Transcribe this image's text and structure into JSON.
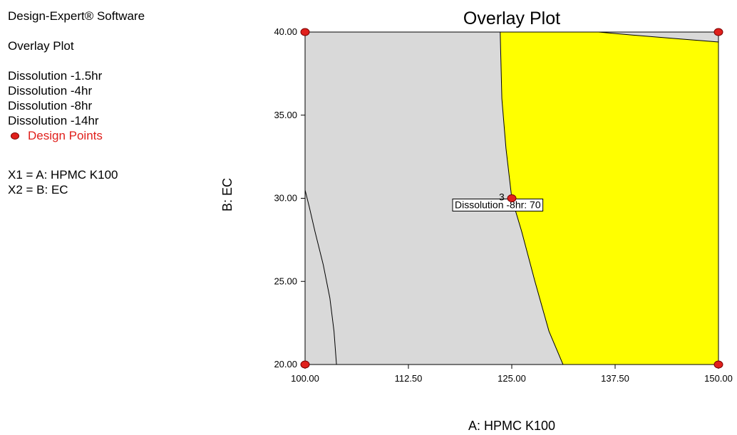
{
  "header": {
    "software": "Design-Expert® Software",
    "plot_name": "Overlay Plot",
    "responses": [
      "Dissolution -1.5hr",
      "Dissolution -4hr",
      "Dissolution -8hr",
      "Dissolution -14hr"
    ],
    "design_points_label": "Design Points",
    "factor_x1": "X1 = A: HPMC K100",
    "factor_x2": "X2 = B: EC"
  },
  "colors": {
    "feasible_region": "#ffff00",
    "infeasible_region": "#d9d9d9",
    "design_point": "#e0201c"
  },
  "chart_data": {
    "type": "overlay_contour",
    "title": "Overlay Plot",
    "xlabel": "A: HPMC K100",
    "ylabel": "B: EC",
    "xlim": [
      100,
      150
    ],
    "ylim": [
      20,
      40
    ],
    "x_ticks": [
      "100.00",
      "112.50",
      "125.00",
      "137.50",
      "150.00"
    ],
    "y_ticks": [
      "20.00",
      "25.00",
      "30.00",
      "35.00",
      "40.00"
    ],
    "design_points": [
      {
        "x": 100,
        "y": 40
      },
      {
        "x": 150,
        "y": 40
      },
      {
        "x": 100,
        "y": 20
      },
      {
        "x": 150,
        "y": 20
      },
      {
        "x": 125,
        "y": 30
      }
    ],
    "center_point_count": "3",
    "flag": {
      "x": 125,
      "y": 30,
      "text": "Dissolution -8hr: 70"
    },
    "feasible_region": {
      "boundary_left": [
        [
          131.2,
          20
        ],
        [
          129.5,
          22
        ],
        [
          127.8,
          25
        ],
        [
          126.2,
          28
        ],
        [
          125,
          30
        ],
        [
          124.3,
          33
        ],
        [
          123.8,
          36
        ],
        [
          123.6,
          40
        ]
      ],
      "boundary_top": [
        [
          123.6,
          40
        ],
        [
          135.5,
          40
        ],
        [
          140,
          39.8
        ],
        [
          145,
          39.6
        ],
        [
          150,
          39.4
        ]
      ]
    },
    "contour_lines": [
      {
        "name": "left-contour",
        "points": [
          [
            103.8,
            20
          ],
          [
            103.5,
            22
          ],
          [
            103,
            24
          ],
          [
            102.2,
            26
          ],
          [
            101.2,
            28
          ],
          [
            100.5,
            29.5
          ],
          [
            100,
            30.5
          ]
        ]
      }
    ]
  }
}
